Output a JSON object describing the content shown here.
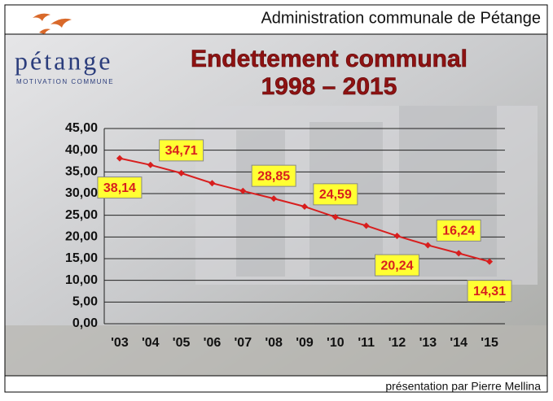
{
  "header": {
    "title": "Administration communale de Pétange"
  },
  "logo": {
    "name": "pétange",
    "tagline": "MOTIVATION COMMUNE"
  },
  "footer": {
    "text": "présentation par Pierre Mellina"
  },
  "chart_data": {
    "type": "line",
    "title": "Endettement communal",
    "subtitle": "1998 – 2015",
    "categories": [
      "'03",
      "'04",
      "'05",
      "'06",
      "'07",
      "'08",
      "'09",
      "'10",
      "'11",
      "'12",
      "'13",
      "'14",
      "'15"
    ],
    "values": [
      38.14,
      36.6,
      34.71,
      32.4,
      30.6,
      28.85,
      27.0,
      24.59,
      22.6,
      20.24,
      18.1,
      16.24,
      14.31
    ],
    "value_labels": [
      "38,14",
      null,
      "34,71",
      null,
      null,
      "28,85",
      null,
      "24,59",
      null,
      "20,24",
      null,
      "16,24",
      "14,31"
    ],
    "color": "#d81e1e",
    "ylim": [
      0,
      45
    ],
    "yticks": [
      {
        "value": 0,
        "label": "0,00"
      },
      {
        "value": 5,
        "label": "5,00"
      },
      {
        "value": 10,
        "label": "10,00"
      },
      {
        "value": 15,
        "label": "15,00"
      },
      {
        "value": 20,
        "label": "20,00"
      },
      {
        "value": 25,
        "label": "25,00"
      },
      {
        "value": 30,
        "label": "30,00"
      },
      {
        "value": 35,
        "label": "35,00"
      },
      {
        "value": 40,
        "label": "40,00"
      },
      {
        "value": 45,
        "label": "45,00"
      }
    ],
    "grid": true
  }
}
